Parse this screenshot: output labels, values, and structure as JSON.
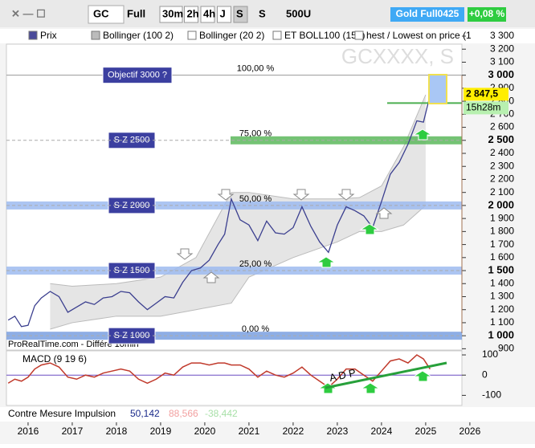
{
  "toolbar": {
    "symbol": "GC",
    "mode": "Full",
    "periods": [
      "30m",
      "2h",
      "4h",
      "J",
      "S"
    ],
    "period_select": "S",
    "units": "500U",
    "instrument": "Gold Full0425",
    "change": "+0,08 %"
  },
  "legend": [
    "Prix",
    "Bollinger (100 2)",
    "Bollinger (20 2)",
    "ET BOLL100 (150)",
    "hest / Lowest on price (1"
  ],
  "chart_data": {
    "type": "line",
    "title": "GCXXXX, S",
    "source": "ProRealTime.com - Différé 10min",
    "x": [
      2015.55,
      2015.7,
      2015.85,
      2016.0,
      2016.15,
      2016.3,
      2016.5,
      2016.7,
      2016.9,
      2017.1,
      2017.3,
      2017.5,
      2017.7,
      2017.9,
      2018.1,
      2018.3,
      2018.5,
      2018.7,
      2018.9,
      2019.1,
      2019.3,
      2019.5,
      2019.7,
      2019.9,
      2020.1,
      2020.3,
      2020.45,
      2020.6,
      2020.8,
      2021.0,
      2021.2,
      2021.4,
      2021.6,
      2021.8,
      2022.0,
      2022.2,
      2022.4,
      2022.6,
      2022.8,
      2023.0,
      2023.2,
      2023.4,
      2023.6,
      2023.8,
      2024.0,
      2024.2,
      2024.4,
      2024.6,
      2024.8,
      2024.95,
      2025.1
    ],
    "series": [
      {
        "name": "Prix",
        "color": "#3b3f8f",
        "values": [
          1120,
          1150,
          1070,
          1080,
          1230,
          1290,
          1340,
          1300,
          1180,
          1220,
          1260,
          1240,
          1290,
          1300,
          1340,
          1330,
          1260,
          1200,
          1250,
          1300,
          1290,
          1410,
          1500,
          1520,
          1580,
          1700,
          1780,
          2050,
          1890,
          1850,
          1730,
          1880,
          1790,
          1780,
          1830,
          1990,
          1840,
          1720,
          1640,
          1850,
          1990,
          1960,
          1920,
          1830,
          2030,
          2240,
          2330,
          2470,
          2650,
          2640,
          2847.5
        ]
      }
    ],
    "band": {
      "x": [
        2016.5,
        2017,
        2018,
        2019,
        2019.8,
        2020.6,
        2021,
        2022,
        2023,
        2023.5,
        2024,
        2024.5,
        2025
      ],
      "upper": [
        1400,
        1380,
        1400,
        1450,
        1600,
        2100,
        2100,
        2050,
        2050,
        2060,
        2150,
        2450,
        2850
      ],
      "lower": [
        1050,
        1100,
        1150,
        1150,
        1200,
        1250,
        1450,
        1600,
        1720,
        1800,
        1800,
        1850,
        2000
      ],
      "color": "#d4d4d4"
    },
    "last_price": {
      "value": 2847.5,
      "label": "2 847,5"
    },
    "countdown": "15h28m",
    "xlim": [
      2015.51,
      2025.82
    ],
    "xticks": [
      2016,
      2017,
      2018,
      2019,
      2020,
      2021,
      2022,
      2023,
      2024,
      2025,
      2026
    ],
    "ylim": [
      890,
      3300
    ],
    "yticks": [
      {
        "value": 900,
        "label": "900"
      },
      {
        "value": 1000,
        "label": "1 000"
      },
      {
        "value": 1100,
        "label": "1 100"
      },
      {
        "value": 1200,
        "label": "1 200"
      },
      {
        "value": 1300,
        "label": "1 300"
      },
      {
        "value": 1400,
        "label": "1 400"
      },
      {
        "value": 1500,
        "label": "1 500"
      },
      {
        "value": 1600,
        "label": "1 600"
      },
      {
        "value": 1700,
        "label": "1 700"
      },
      {
        "value": 1800,
        "label": "1 800"
      },
      {
        "value": 1900,
        "label": "1 900"
      },
      {
        "value": 2000,
        "label": "2 000"
      },
      {
        "value": 2100,
        "label": "2 100"
      },
      {
        "value": 2200,
        "label": "2 200"
      },
      {
        "value": 2300,
        "label": "2 300"
      },
      {
        "value": 2400,
        "label": "2 400"
      },
      {
        "value": 2500,
        "label": "2 500"
      },
      {
        "value": 2600,
        "label": "2 600"
      },
      {
        "value": 2700,
        "label": "2 700"
      },
      {
        "value": 2800,
        "label": "2 800"
      },
      {
        "value": 2900,
        "label": "2 900"
      },
      {
        "value": 3000,
        "label": "3 000"
      },
      {
        "value": 3100,
        "label": "3 100"
      },
      {
        "value": 3200,
        "label": "3 200"
      },
      {
        "value": 3300,
        "label": "3 300"
      }
    ],
    "zones": [
      {
        "label": "S Z 2500",
        "level": 2500,
        "color": "#5cb85c"
      },
      {
        "label": "S Z 2000",
        "level": 2000,
        "color": "#9dbbf0"
      },
      {
        "label": "S Z 1500",
        "level": 1500,
        "color": "#9dbbf0"
      },
      {
        "label": "S Z 1000",
        "level": 1000,
        "color": "#7aa0e0"
      }
    ],
    "fib_levels": [
      {
        "label": "100,00 %",
        "level": 3000
      },
      {
        "label": "75,00 %",
        "level": 2500
      },
      {
        "label": "50,00 %",
        "level": 2000
      },
      {
        "label": "25,00 %",
        "level": 1500
      },
      {
        "label": "0,00 %",
        "level": 1000
      }
    ],
    "target": {
      "label": "Objectif 3000 ?",
      "level": 3000
    },
    "annotation": "A D P",
    "macd": {
      "name": "MACD (9 19 6)",
      "color": "#c0392b",
      "values": [
        -40,
        -20,
        -30,
        -10,
        30,
        50,
        60,
        40,
        -10,
        -20,
        0,
        -10,
        10,
        20,
        30,
        20,
        -20,
        -40,
        -20,
        10,
        0,
        40,
        60,
        60,
        50,
        60,
        60,
        50,
        50,
        30,
        -10,
        20,
        0,
        -10,
        10,
        40,
        0,
        -30,
        -60,
        -20,
        30,
        30,
        0,
        -30,
        20,
        70,
        80,
        60,
        100,
        80,
        30
      ],
      "ylim": [
        -150,
        120
      ],
      "yticks": [
        100,
        0,
        -100
      ]
    }
  },
  "footer": {
    "label": "Contre Mesure  Impulsion",
    "values": [
      "50,142",
      "88,566",
      "-38,442"
    ]
  }
}
